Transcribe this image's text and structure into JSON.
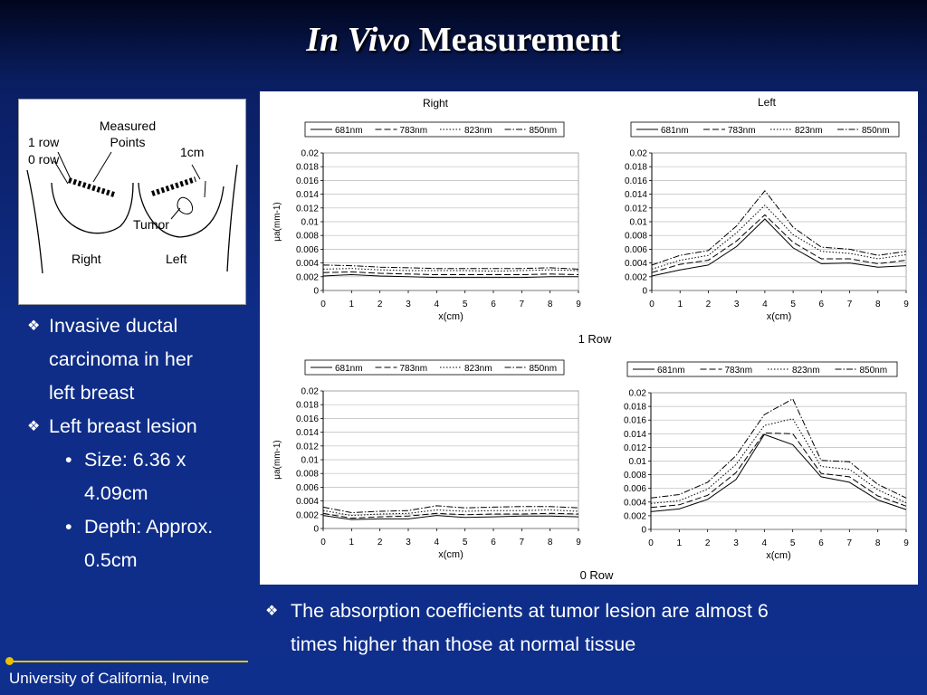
{
  "slide": {
    "title_italic": "In Vivo",
    "title_rest": "Measurement",
    "diagram": {
      "measured_points": [
        "Measured",
        "Points"
      ],
      "row1": "1 row",
      "row0": "0 row",
      "scale": "1cm",
      "tumor": "Tumor",
      "right": "Right",
      "left": "Left"
    },
    "bullets": [
      {
        "level": 1,
        "lines": [
          "Invasive ductal",
          "carcinoma in her",
          "left breast"
        ]
      },
      {
        "level": 1,
        "lines": [
          "Left breast lesion"
        ]
      },
      {
        "level": 2,
        "lines": [
          "Size: 6.36 x",
          "4.09cm"
        ]
      },
      {
        "level": 2,
        "lines": [
          "Depth: Approx.",
          "0.5cm"
        ]
      }
    ],
    "note": [
      "The absorption coefficients at tumor lesion are almost 6",
      "times higher than those at normal tissue"
    ],
    "row_labels": {
      "top": "1 Row",
      "bottom": "0 Row"
    },
    "footer": "University of California, Irvine"
  },
  "chart_data": [
    {
      "type": "line",
      "title": "Right",
      "row": "1 Row",
      "xlabel": "x(cm)",
      "ylabel": "μa(mm-1)",
      "x": [
        0,
        1,
        2,
        3,
        4,
        5,
        6,
        7,
        8,
        9
      ],
      "xlim": [
        0,
        9
      ],
      "ylim": [
        0,
        0.02
      ],
      "ytick_labels": [
        "0",
        "0.002",
        "0.004",
        "0.006",
        "0.008",
        "0.01",
        "0.012",
        "0.014",
        "0.016",
        "0.018",
        "0.02"
      ],
      "grid": true,
      "legend": "top",
      "series": [
        {
          "name": "681nm",
          "values": [
            0.0021,
            0.0023,
            0.0021,
            0.002,
            0.0019,
            0.0019,
            0.0019,
            0.0019,
            0.002,
            0.002
          ]
        },
        {
          "name": "783nm",
          "values": [
            0.0026,
            0.0027,
            0.0025,
            0.0024,
            0.0023,
            0.0023,
            0.0023,
            0.0023,
            0.0024,
            0.0023
          ]
        },
        {
          "name": "823nm",
          "values": [
            0.0031,
            0.0032,
            0.003,
            0.0029,
            0.0029,
            0.0029,
            0.0028,
            0.0029,
            0.003,
            0.0029
          ]
        },
        {
          "name": "850nm",
          "values": [
            0.0037,
            0.0036,
            0.0034,
            0.0033,
            0.0032,
            0.0032,
            0.0032,
            0.0032,
            0.0033,
            0.0031
          ]
        }
      ]
    },
    {
      "type": "line",
      "title": "Left",
      "row": "1 Row",
      "xlabel": "x(cm)",
      "ylabel": "",
      "x": [
        0,
        1,
        2,
        3,
        4,
        5,
        6,
        7,
        8,
        9
      ],
      "xlim": [
        0,
        9
      ],
      "ylim": [
        0,
        0.02
      ],
      "ytick_labels": [
        "0",
        "0.002",
        "0.004",
        "0.006",
        "0.008",
        "0.01",
        "0.012",
        "0.014",
        "0.016",
        "0.018",
        "0.02"
      ],
      "grid": true,
      "legend": "top",
      "series": [
        {
          "name": "681nm",
          "values": [
            0.0021,
            0.003,
            0.0037,
            0.0064,
            0.0104,
            0.0062,
            0.0039,
            0.004,
            0.0034,
            0.0036
          ]
        },
        {
          "name": "783nm",
          "values": [
            0.0026,
            0.0038,
            0.0044,
            0.0072,
            0.011,
            0.007,
            0.0046,
            0.0046,
            0.0039,
            0.0044
          ]
        },
        {
          "name": "823nm",
          "values": [
            0.0031,
            0.0044,
            0.0051,
            0.0084,
            0.0124,
            0.0081,
            0.0057,
            0.0054,
            0.0046,
            0.0052
          ]
        },
        {
          "name": "850nm",
          "values": [
            0.0037,
            0.0051,
            0.0058,
            0.0094,
            0.0145,
            0.0092,
            0.0063,
            0.006,
            0.0051,
            0.0057
          ]
        }
      ]
    },
    {
      "type": "line",
      "title": "",
      "row": "0 Row",
      "xlabel": "x(cm)",
      "ylabel": "μa(mm-1)",
      "x": [
        0,
        1,
        2,
        3,
        4,
        5,
        6,
        7,
        8,
        9
      ],
      "xlim": [
        0,
        9
      ],
      "ylim": [
        0,
        0.02
      ],
      "ytick_labels": [
        "0",
        "0.002",
        "0.004",
        "0.006",
        "0.008",
        "0.01",
        "0.012",
        "0.014",
        "0.016",
        "0.018",
        "0.02"
      ],
      "grid": true,
      "legend": "top",
      "series": [
        {
          "name": "681nm",
          "values": [
            0.0019,
            0.0013,
            0.0014,
            0.0014,
            0.0019,
            0.0016,
            0.0017,
            0.0018,
            0.0018,
            0.0017
          ]
        },
        {
          "name": "783nm",
          "values": [
            0.0022,
            0.0015,
            0.0017,
            0.0018,
            0.0022,
            0.002,
            0.0021,
            0.0021,
            0.0022,
            0.0021
          ]
        },
        {
          "name": "823nm",
          "values": [
            0.0026,
            0.0019,
            0.0021,
            0.0022,
            0.0027,
            0.0025,
            0.0026,
            0.0026,
            0.0027,
            0.0025
          ]
        },
        {
          "name": "850nm",
          "values": [
            0.0031,
            0.0023,
            0.0025,
            0.0026,
            0.0033,
            0.003,
            0.0031,
            0.0032,
            0.0032,
            0.003
          ]
        }
      ]
    },
    {
      "type": "line",
      "title": "",
      "row": "0 Row",
      "xlabel": "x(cm)",
      "ylabel": "",
      "x": [
        0,
        1,
        2,
        3,
        4,
        5,
        6,
        7,
        8,
        9
      ],
      "xlim": [
        0,
        9
      ],
      "ylim": [
        0,
        0.02
      ],
      "ytick_labels": [
        "0",
        "0.002",
        "0.004",
        "0.006",
        "0.008",
        "0.01",
        "0.012",
        "0.014",
        "0.016",
        "0.018",
        "0.02"
      ],
      "grid": true,
      "legend": "top",
      "series": [
        {
          "name": "681nm",
          "values": [
            0.0026,
            0.003,
            0.0044,
            0.0073,
            0.0139,
            0.0124,
            0.0077,
            0.0069,
            0.0043,
            0.0029
          ]
        },
        {
          "name": "783nm",
          "values": [
            0.0032,
            0.0036,
            0.005,
            0.0083,
            0.0141,
            0.014,
            0.0082,
            0.0077,
            0.0049,
            0.0034
          ]
        },
        {
          "name": "823nm",
          "values": [
            0.0038,
            0.0042,
            0.0059,
            0.0095,
            0.0152,
            0.0162,
            0.0092,
            0.0088,
            0.0058,
            0.0039
          ]
        },
        {
          "name": "850nm",
          "values": [
            0.0046,
            0.0051,
            0.0069,
            0.0108,
            0.0168,
            0.0191,
            0.0101,
            0.0099,
            0.0066,
            0.0046
          ]
        }
      ]
    }
  ]
}
